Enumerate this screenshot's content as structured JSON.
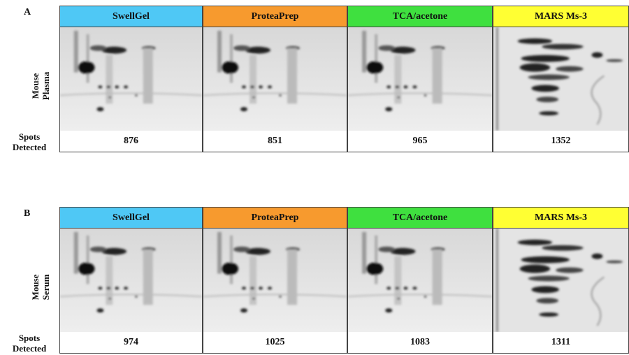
{
  "panels": [
    {
      "label": "A",
      "sample": [
        "Mouse",
        "Plasma"
      ],
      "row_label": [
        "Spots",
        "Detected"
      ],
      "columns": [
        {
          "name": "SwellGel",
          "color": "#4fc8f5",
          "spots": 876
        },
        {
          "name": "ProteaPrep",
          "color": "#f79a2e",
          "spots": 851
        },
        {
          "name": "TCA/acetone",
          "color": "#3fe03f",
          "spots": 965
        },
        {
          "name": "MARS Ms-3",
          "color": "#ffff33",
          "spots": 1352
        }
      ]
    },
    {
      "label": "B",
      "sample": [
        "Mouse",
        "Serum"
      ],
      "row_label": [
        "Spots",
        "Detected"
      ],
      "columns": [
        {
          "name": "SwellGel",
          "color": "#4fc8f5",
          "spots": 974
        },
        {
          "name": "ProteaPrep",
          "color": "#f79a2e",
          "spots": 1025
        },
        {
          "name": "TCA/acetone",
          "color": "#3fe03f",
          "spots": 1083
        },
        {
          "name": "MARS Ms-3",
          "color": "#ffff33",
          "spots": 1311
        }
      ]
    }
  ]
}
